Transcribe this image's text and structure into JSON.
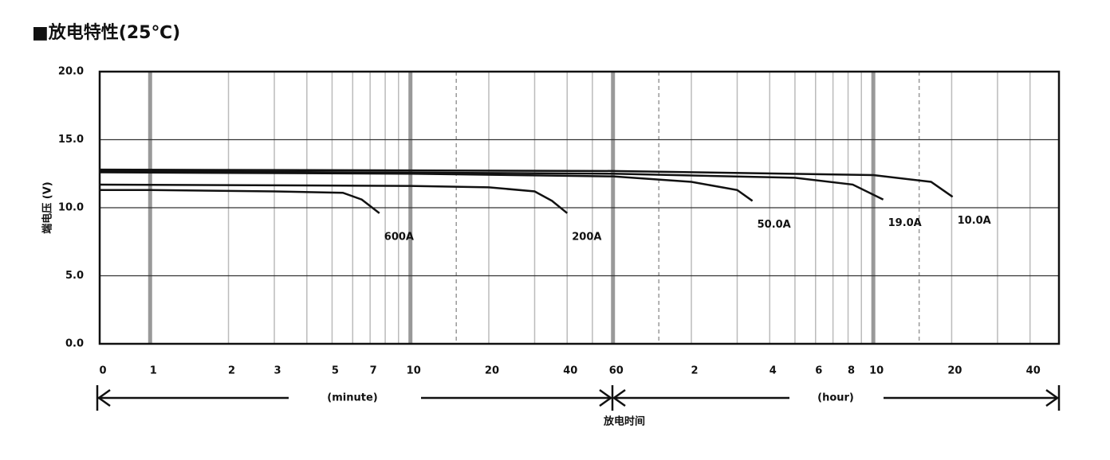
{
  "chart_data": {
    "type": "line",
    "title": "■放电特性(25℃)",
    "y_label": "端电压 (V)",
    "x_label": "放电时间",
    "x_unit_labels": [
      "(minute)",
      "(hour)"
    ],
    "x_scale": "log",
    "xlim": [
      0.64,
      3100
    ],
    "ylim": [
      0,
      20
    ],
    "yticks": [
      {
        "value": 0,
        "label": "0.0"
      },
      {
        "value": 5,
        "label": "5.0"
      },
      {
        "value": 10,
        "label": "10.0"
      },
      {
        "value": 15,
        "label": "15.0"
      },
      {
        "value": 20,
        "label": "20.0"
      }
    ],
    "xticks": [
      0,
      1,
      2,
      3,
      5,
      7,
      10,
      20,
      40,
      60,
      {
        "value": 120,
        "label": "2"
      },
      {
        "value": 240,
        "label": "4"
      },
      {
        "value": 360,
        "label": "6"
      },
      {
        "value": 480,
        "label": "8"
      },
      {
        "value": 600,
        "label": "10"
      },
      {
        "value": 1200,
        "label": "20"
      },
      {
        "value": 2400,
        "label": "40"
      }
    ],
    "major_grid": [
      1,
      10,
      60,
      600
    ],
    "dashed_grid": [
      15,
      90,
      900
    ],
    "minor_grid": [
      4,
      6,
      8,
      9,
      30,
      50,
      180,
      300,
      420,
      540,
      1800
    ],
    "grid": true,
    "series": [
      {
        "name": "600A",
        "color": "#111111",
        "x": [
          0,
          1,
          3,
          5.5,
          6.5,
          7.6
        ],
        "values": [
          11.3,
          11.3,
          11.2,
          11.1,
          10.6,
          9.6
        ]
      },
      {
        "name": "200A",
        "color": "#111111",
        "x": [
          0,
          10,
          20,
          30,
          35,
          40
        ],
        "values": [
          11.7,
          11.6,
          11.5,
          11.2,
          10.5,
          9.6
        ]
      },
      {
        "name": "50.0A",
        "color": "#111111",
        "x": [
          0,
          10,
          60,
          120,
          180,
          206
        ],
        "values": [
          12.6,
          12.5,
          12.3,
          11.9,
          11.3,
          10.5
        ]
      },
      {
        "name": "19.0A",
        "color": "#111111",
        "x": [
          0,
          60,
          300,
          500,
          655
        ],
        "values": [
          12.7,
          12.5,
          12.2,
          11.7,
          10.6
        ]
      },
      {
        "name": "10.0A",
        "color": "#111111",
        "x": [
          0,
          60,
          600,
          1000,
          1210
        ],
        "values": [
          12.8,
          12.7,
          12.4,
          11.9,
          10.8
        ]
      }
    ]
  }
}
